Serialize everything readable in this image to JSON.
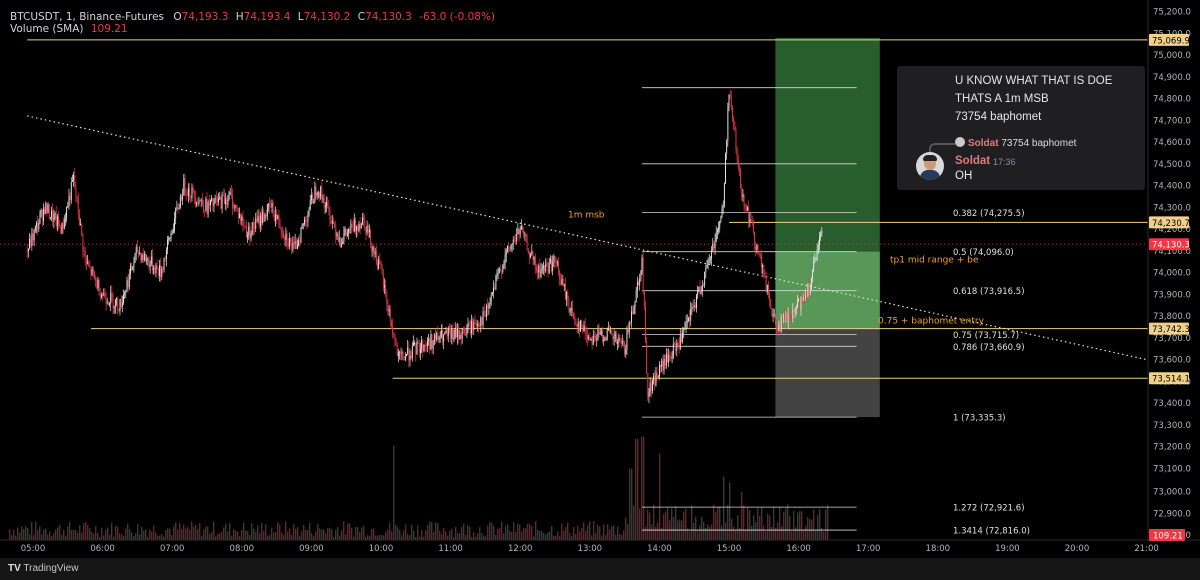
{
  "header": {
    "symbol": "BTCUSDT, 1, Binance-Futures",
    "open_label": "O",
    "open": "74,193.3",
    "high_label": "H",
    "high": "74,193.4",
    "low_label": "L",
    "low": "74,130.2",
    "close_label": "C",
    "close": "74,130.3",
    "change": "-63.0 (-0.08%)",
    "volume_label": "Volume (SMA)",
    "volume_value": "109.21"
  },
  "chat": {
    "lines": [
      "U KNOW WHAT THAT IS DOE",
      "THATS A 1m MSB",
      "73754 baphomet"
    ],
    "reply_user": "Soldat",
    "reply_text": "73754 baphomet",
    "username": "Soldat",
    "time": "17:36",
    "message": "OH",
    "avatar_icon": "user-avatar-icon"
  },
  "footer": {
    "brand": "TradingView",
    "logo_icon": "tradingview-logo-icon"
  },
  "colors": {
    "up": "#e8e8e8",
    "down": "#f23645",
    "level": "#f0d08a",
    "orange": "#f7a21b",
    "green_zone": "#2f6f36",
    "gray_zone": "#7a7a7a",
    "axis_bg": "#000000",
    "price_badge": "#f23645"
  },
  "chart_data": {
    "type": "candlestick",
    "title": "",
    "x": [
      "05:00",
      "06:00",
      "07:00",
      "08:00",
      "09:00",
      "10:00",
      "11:00",
      "12:00",
      "13:00",
      "14:00",
      "15:00",
      "16:00",
      "17:00",
      "18:00",
      "19:00",
      "20:00",
      "21:00"
    ],
    "y_ticks": [
      73100,
      73200,
      73300,
      73400,
      73500,
      73600,
      73700,
      73800,
      73900,
      74000,
      74100,
      74200,
      74300,
      74400,
      74500,
      74600,
      74700,
      74800,
      74900,
      75000,
      75100,
      75200
    ],
    "y_tick_labels": [
      "73,100.0",
      "73,200.0",
      "73,300.0",
      "73,400.0",
      "73,500.0",
      "73,600.0",
      "73,700.0",
      "73,800.0",
      "73,900.0",
      "74,000.0",
      "74,100.0",
      "74,200.0",
      "74,300.0",
      "74,400.0",
      "74,500.0",
      "74,600.0",
      "74,700.0",
      "74,800.0",
      "74,900.0",
      "75,000.0",
      "75,100.0",
      "75,200.0"
    ],
    "ylim": [
      72790,
      75210
    ],
    "lower_tick_labels": [
      "73,000.0",
      "72,900.0",
      "72,800.0"
    ],
    "price_path": [
      [
        "04:55",
        74100
      ],
      [
        "05:10",
        74300
      ],
      [
        "05:25",
        74200
      ],
      [
        "05:35",
        74430
      ],
      [
        "05:45",
        74050
      ],
      [
        "06:00",
        73900
      ],
      [
        "06:15",
        73850
      ],
      [
        "06:30",
        74100
      ],
      [
        "06:50",
        74000
      ],
      [
        "07:10",
        74400
      ],
      [
        "07:30",
        74300
      ],
      [
        "07:50",
        74350
      ],
      [
        "08:05",
        74180
      ],
      [
        "08:25",
        74300
      ],
      [
        "08:45",
        74100
      ],
      [
        "09:05",
        74400
      ],
      [
        "09:25",
        74150
      ],
      [
        "09:45",
        74250
      ],
      [
        "10:00",
        74000
      ],
      [
        "10:15",
        73600
      ],
      [
        "10:30",
        73650
      ],
      [
        "10:50",
        73700
      ],
      [
        "11:10",
        73720
      ],
      [
        "11:30",
        73800
      ],
      [
        "11:45",
        74050
      ],
      [
        "12:00",
        74200
      ],
      [
        "12:15",
        74000
      ],
      [
        "12:30",
        74050
      ],
      [
        "12:45",
        73800
      ],
      [
        "13:00",
        73700
      ],
      [
        "13:15",
        73720
      ],
      [
        "13:30",
        73650
      ],
      [
        "13:45",
        74050
      ],
      [
        "13:50",
        73450
      ],
      [
        "14:00",
        73550
      ],
      [
        "14:20",
        73700
      ],
      [
        "14:40",
        74000
      ],
      [
        "14:55",
        74300
      ],
      [
        "15:00",
        74850
      ],
      [
        "15:10",
        74400
      ],
      [
        "15:25",
        74100
      ],
      [
        "15:40",
        73750
      ],
      [
        "15:55",
        73800
      ],
      [
        "16:10",
        73950
      ],
      [
        "16:20",
        74180
      ]
    ],
    "last_price": 74130.3,
    "volume": {
      "label": "Volume (SMA)",
      "spikes": [
        [
          "10:10",
          0.82
        ],
        [
          "13:35",
          0.62
        ],
        [
          "13:40",
          0.88
        ],
        [
          "13:45",
          0.9
        ],
        [
          "14:00",
          0.75
        ],
        [
          "14:55",
          0.55
        ],
        [
          "15:00",
          0.5
        ],
        [
          "15:10",
          0.42
        ]
      ]
    },
    "horizontal_lines": [
      {
        "price": 75069.9,
        "label": "75,069.9",
        "x_start": "04:55",
        "badge": true
      },
      {
        "price": 74230.7,
        "label": "74,230.7",
        "x_start": "15:00",
        "badge": true
      },
      {
        "price": 73742.3,
        "label": "73,742.3",
        "x_start": "05:50",
        "badge": true
      },
      {
        "price": 73514.1,
        "label": "73,514.1",
        "x_start": "10:10",
        "badge": true
      }
    ],
    "fib_levels": [
      {
        "ratio": "0.382",
        "price": 74275.5,
        "label": "0.382 (74,275.5)"
      },
      {
        "ratio": "0.5",
        "price": 74096.0,
        "label": "0.5 (74,096.0)"
      },
      {
        "ratio": "0.618",
        "price": 73916.5,
        "label": "0.618 (73,916.5)"
      },
      {
        "ratio": "0.75",
        "price": 73715.7,
        "label": "0.75 (73,715.7)"
      },
      {
        "ratio": "0.786",
        "price": 73660.9,
        "label": "0.786 (73,660.9)"
      },
      {
        "ratio": "1",
        "price": 73335.3,
        "label": "1 (73,335.3)"
      },
      {
        "ratio": "1.272",
        "price": 72921.6,
        "label": "1.272 (72,921.6)"
      },
      {
        "ratio": "1.3414",
        "price": 72816.0,
        "label": "1.3414 (72,816.0)"
      }
    ],
    "fib_extra_lines": [
      74500,
      74850
    ],
    "annotations": [
      {
        "text": "1m msb",
        "price": 74230.7
      },
      {
        "text": "tp1 mid range + be",
        "price": 74096.0
      },
      {
        "text": "0.75 + baphomet entry",
        "price": 73742.3
      }
    ],
    "position_zone": {
      "x_start": "15:40",
      "x_end": "17:10",
      "entry": 73742.3,
      "target": 75069.9,
      "stop": 73335.3
    },
    "trendline": {
      "start": [
        "04:55",
        74720
      ],
      "end": [
        "21:00",
        73600
      ],
      "style": "dotted"
    }
  }
}
